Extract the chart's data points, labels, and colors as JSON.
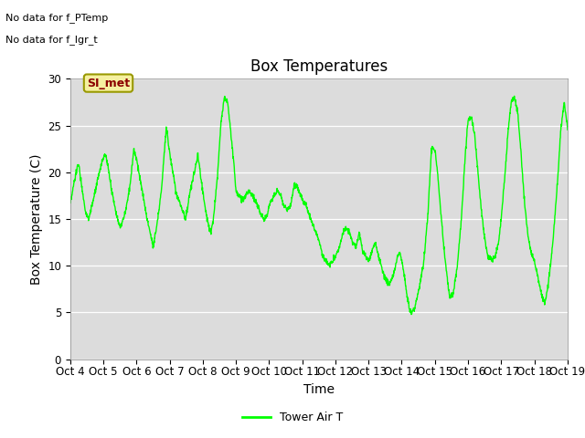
{
  "title": "Box Temperatures",
  "ylabel": "Box Temperature (C)",
  "xlabel": "Time",
  "legend_label": "Tower Air T",
  "no_data_texts": [
    "No data for f_PTemp",
    "No data for f_lgr_t"
  ],
  "si_met_label": "SI_met",
  "ylim": [
    0,
    30
  ],
  "yticks": [
    0,
    5,
    10,
    15,
    20,
    25,
    30
  ],
  "xtick_labels": [
    "Oct 4",
    "Oct 5",
    "Oct 6",
    "Oct 7",
    "Oct 8",
    "Oct 9",
    "Oct 10",
    "Oct 11",
    "Oct 12",
    "Oct 13",
    "Oct 14",
    "Oct 15",
    "Oct 16",
    "Oct 17",
    "Oct 18",
    "Oct 19"
  ],
  "line_color": "#00ff00",
  "background_color": "#dcdcdc",
  "title_fontsize": 12,
  "axis_label_fontsize": 10,
  "tick_fontsize": 8.5,
  "x_days": [
    4,
    5,
    6,
    7,
    8,
    9,
    10,
    11,
    12,
    13,
    14,
    15,
    16,
    17,
    18,
    19
  ]
}
